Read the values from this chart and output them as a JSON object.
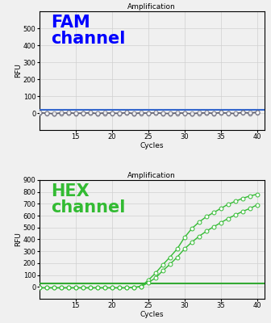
{
  "title": "Amplification",
  "xlabel": "Cycles",
  "ylabel": "RFU",
  "fam_label": "FAM\nchannel",
  "hex_label": "HEX\nchannel",
  "fam_color": "#0000ff",
  "hex_color": "#33bb33",
  "threshold_color_fam": "#3366cc",
  "threshold_color_hex": "#33aa33",
  "fam_ylim": [
    -100,
    600
  ],
  "hex_ylim": [
    -100,
    900
  ],
  "fam_yticks": [
    0,
    100,
    200,
    300,
    400,
    500
  ],
  "hex_yticks": [
    0,
    100,
    200,
    300,
    400,
    500,
    600,
    700,
    800,
    900
  ],
  "xlim": [
    10,
    41
  ],
  "xticks": [
    15,
    20,
    25,
    30,
    35,
    40
  ],
  "fam_threshold": 20,
  "hex_threshold": 30,
  "cycles": [
    10,
    11,
    12,
    13,
    14,
    15,
    16,
    17,
    18,
    19,
    20,
    21,
    22,
    23,
    24,
    25,
    26,
    27,
    28,
    29,
    30,
    31,
    32,
    33,
    34,
    35,
    36,
    37,
    38,
    39,
    40
  ],
  "fam_data_flat": [
    2,
    0,
    -3,
    1,
    2,
    -1,
    0,
    2,
    -2,
    1,
    0,
    -1,
    3,
    -2,
    1,
    0,
    2,
    -1,
    -2,
    1,
    0,
    -3,
    1,
    2,
    -1,
    3,
    0,
    -2,
    4,
    1,
    5
  ],
  "hex_curve1": [
    -8,
    -8,
    -8,
    -8,
    -8,
    -8,
    -8,
    -8,
    -8,
    -8,
    -8,
    -8,
    -8,
    -5,
    5,
    55,
    115,
    185,
    250,
    320,
    415,
    490,
    545,
    590,
    625,
    660,
    695,
    720,
    745,
    765,
    780
  ],
  "hex_curve2": [
    -8,
    -8,
    -8,
    -8,
    -8,
    -8,
    -8,
    -8,
    -8,
    -8,
    -8,
    -8,
    -8,
    -5,
    2,
    35,
    75,
    135,
    190,
    250,
    320,
    375,
    425,
    468,
    505,
    540,
    575,
    605,
    635,
    660,
    690
  ],
  "background_color": "#f0f0f0",
  "grid_color": "#d0d0d0",
  "line_color_fam": "#555566",
  "marker_size": 3.5,
  "line_width": 0.8
}
